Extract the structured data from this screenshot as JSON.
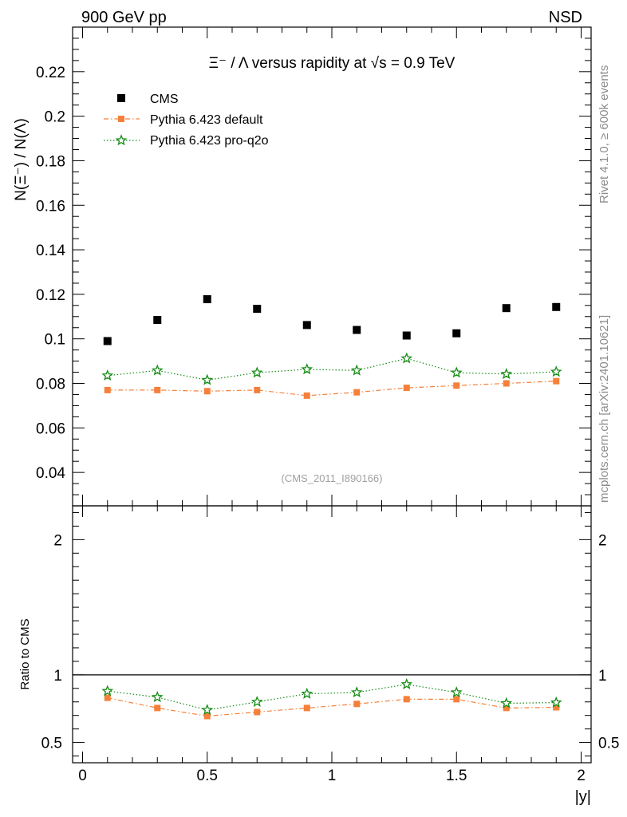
{
  "header": {
    "left_label": "900 GeV pp",
    "right_label": "NSD",
    "side_label_top": "Rivet 4.1.0, ≥ 600k events",
    "side_label_bottom": "mcplots.cern.ch [arXiv:2401.10621]",
    "analysis_id": "(CMS_2011_I890166)"
  },
  "colors": {
    "cms": "#000000",
    "pythia_default": "#f5803a",
    "pythia_proq2o": "#158c15"
  },
  "chart_data": {
    "type": "scatter",
    "title": "Ξ⁻ / Λ versus rapidity at √s = 0.9 TeV",
    "xlabel": "|y|",
    "ylabel": "N(Ξ⁻) / N(Λ)",
    "ratio_ylabel": "Ratio to CMS",
    "xlim": [
      -0.04,
      2.04
    ],
    "ylim": [
      0.025,
      0.24
    ],
    "ratio_ylim": [
      0.35,
      2.25
    ],
    "x": [
      0.1,
      0.3,
      0.5,
      0.7,
      0.9,
      1.1,
      1.3,
      1.5,
      1.7,
      1.9
    ],
    "x_ticks": [
      0,
      0.5,
      1,
      1.5,
      2
    ],
    "x_tick_labels": [
      "0",
      "0.5",
      "1",
      "1.5",
      "2"
    ],
    "y_ticks": [
      0.04,
      0.06,
      0.08,
      0.1,
      0.12,
      0.14,
      0.16,
      0.18,
      0.2,
      0.22
    ],
    "y_tick_labels": [
      "0.04",
      "0.06",
      "0.08",
      "0.1",
      "0.12",
      "0.14",
      "0.16",
      "0.18",
      "0.2",
      "0.22"
    ],
    "ratio_ticks": [
      0.5,
      1,
      2
    ],
    "ratio_tick_labels": [
      "0.5",
      "1",
      "2"
    ],
    "legend_position": "top-left",
    "series": [
      {
        "name": "CMS",
        "marker": "square",
        "line": "none",
        "values": [
          0.099,
          0.1085,
          0.1178,
          0.1135,
          0.1062,
          0.104,
          0.1015,
          0.1025,
          0.1138,
          0.1143
        ],
        "ratio": [
          1,
          1,
          1,
          1,
          1,
          1,
          1,
          1,
          1,
          1
        ]
      },
      {
        "name": "Pythia 6.423 default",
        "marker": "filled-square",
        "line": "dash-dot",
        "values": [
          0.077,
          0.077,
          0.0765,
          0.077,
          0.0745,
          0.076,
          0.078,
          0.079,
          0.08,
          0.081
        ],
        "errors": [
          0.0012,
          0.0012,
          0.0012,
          0.0012,
          0.0012,
          0.0012,
          0.0012,
          0.0012,
          0.0012,
          0.0012
        ],
        "ratio": [
          0.83,
          0.755,
          0.695,
          0.725,
          0.755,
          0.785,
          0.82,
          0.82,
          0.755,
          0.76
        ]
      },
      {
        "name": "Pythia 6.423 pro-q2o",
        "marker": "open-star",
        "line": "dotted",
        "values": [
          0.0835,
          0.0858,
          0.0815,
          0.0848,
          0.0863,
          0.0858,
          0.0912,
          0.0848,
          0.0842,
          0.0852
        ],
        "errors": [
          0.0015,
          0.0015,
          0.0015,
          0.0015,
          0.0015,
          0.0015,
          0.0015,
          0.0015,
          0.0015,
          0.0015
        ],
        "ratio": [
          0.88,
          0.835,
          0.74,
          0.8,
          0.86,
          0.87,
          0.93,
          0.87,
          0.79,
          0.795
        ]
      }
    ]
  }
}
